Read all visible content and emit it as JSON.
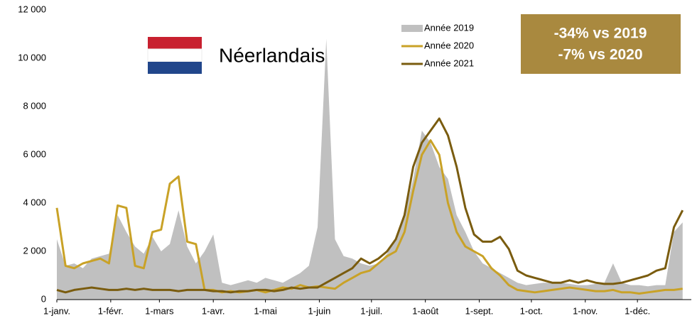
{
  "chart_data": {
    "type": "area-line",
    "title": "Néerlandais",
    "annotations": [
      "-34% vs 2019",
      "-7% vs 2020"
    ],
    "x": [
      0,
      5,
      10,
      15,
      20,
      25,
      30,
      35,
      40,
      45,
      50,
      55,
      60,
      65,
      70,
      75,
      80,
      85,
      90,
      95,
      100,
      105,
      110,
      115,
      120,
      125,
      130,
      135,
      140,
      145,
      150,
      155,
      160,
      165,
      170,
      175,
      180,
      185,
      190,
      195,
      200,
      205,
      210,
      215,
      220,
      225,
      230,
      235,
      240,
      245,
      250,
      255,
      260,
      265,
      270,
      275,
      280,
      285,
      290,
      295,
      300,
      305,
      310,
      315,
      320,
      325,
      330,
      335,
      340,
      345,
      350,
      355,
      360
    ],
    "xlim": [
      0,
      365
    ],
    "xticks": [
      {
        "value": 0,
        "label": "1-janv."
      },
      {
        "value": 31,
        "label": "1-févr."
      },
      {
        "value": 59,
        "label": "1-mars"
      },
      {
        "value": 90,
        "label": "1-avr."
      },
      {
        "value": 120,
        "label": "1-mai"
      },
      {
        "value": 151,
        "label": "1-juin"
      },
      {
        "value": 181,
        "label": "1-juil."
      },
      {
        "value": 212,
        "label": "1-août"
      },
      {
        "value": 243,
        "label": "1-sept."
      },
      {
        "value": 273,
        "label": "1-oct."
      },
      {
        "value": 304,
        "label": "1-nov."
      },
      {
        "value": 334,
        "label": "1-déc."
      }
    ],
    "ylim": [
      0,
      12000
    ],
    "yticks": [
      0,
      {
        "value": 2000,
        "label": "2 000"
      },
      {
        "value": 4000,
        "label": "4 000"
      },
      {
        "value": 6000,
        "label": "6 000"
      },
      {
        "value": 8000,
        "label": "8 000"
      },
      {
        "value": 10000,
        "label": "10 000"
      },
      {
        "value": 12000,
        "label": "12 000"
      }
    ],
    "series": [
      {
        "name": "Année 2019",
        "color": "#c0c0c0",
        "style": "area",
        "values": [
          2500,
          1400,
          1500,
          1300,
          1700,
          1800,
          1900,
          3500,
          2800,
          2200,
          1900,
          2600,
          2000,
          2300,
          3700,
          2200,
          1500,
          2000,
          2700,
          700,
          600,
          700,
          800,
          700,
          900,
          800,
          700,
          900,
          1100,
          1400,
          3000,
          10800,
          2500,
          1800,
          1700,
          1500,
          1400,
          1500,
          1900,
          2600,
          3500,
          5000,
          7000,
          6500,
          5500,
          5000,
          3500,
          2800,
          2000,
          1500,
          1300,
          1100,
          900,
          700,
          600,
          650,
          700,
          700,
          700,
          650,
          600,
          600,
          650,
          700,
          1500,
          700,
          600,
          600,
          550,
          600,
          600,
          2800,
          3200
        ]
      },
      {
        "name": "Année 2020",
        "color": "#c9a227",
        "style": "line",
        "values": [
          3800,
          1400,
          1300,
          1500,
          1600,
          1700,
          1500,
          3900,
          3800,
          1400,
          1300,
          2800,
          2900,
          4800,
          5100,
          2400,
          2300,
          400,
          400,
          300,
          350,
          300,
          350,
          400,
          300,
          400,
          500,
          450,
          600,
          500,
          550,
          500,
          450,
          700,
          900,
          1100,
          1200,
          1500,
          1800,
          2000,
          2800,
          4500,
          6000,
          6600,
          6000,
          4000,
          2800,
          2200,
          2000,
          1800,
          1300,
          1000,
          600,
          400,
          350,
          300,
          350,
          400,
          450,
          500,
          450,
          400,
          350,
          350,
          400,
          300,
          300,
          250,
          300,
          350,
          400,
          400,
          450
        ]
      },
      {
        "name": "Année 2021",
        "color": "#7a5c0f",
        "style": "line",
        "values": [
          400,
          300,
          400,
          450,
          500,
          450,
          400,
          400,
          450,
          400,
          450,
          400,
          400,
          400,
          350,
          400,
          400,
          400,
          350,
          350,
          300,
          350,
          350,
          400,
          400,
          350,
          400,
          500,
          450,
          500,
          500,
          700,
          900,
          1100,
          1300,
          1700,
          1500,
          1700,
          2000,
          2500,
          3500,
          5500,
          6500,
          7000,
          7500,
          6800,
          5500,
          3800,
          2700,
          2400,
          2400,
          2600,
          2100,
          1200,
          1000,
          900,
          800,
          700,
          700,
          800,
          700,
          800,
          700,
          650,
          650,
          700,
          800,
          900,
          1000,
          1200,
          1300,
          3000,
          3700
        ]
      }
    ]
  }
}
